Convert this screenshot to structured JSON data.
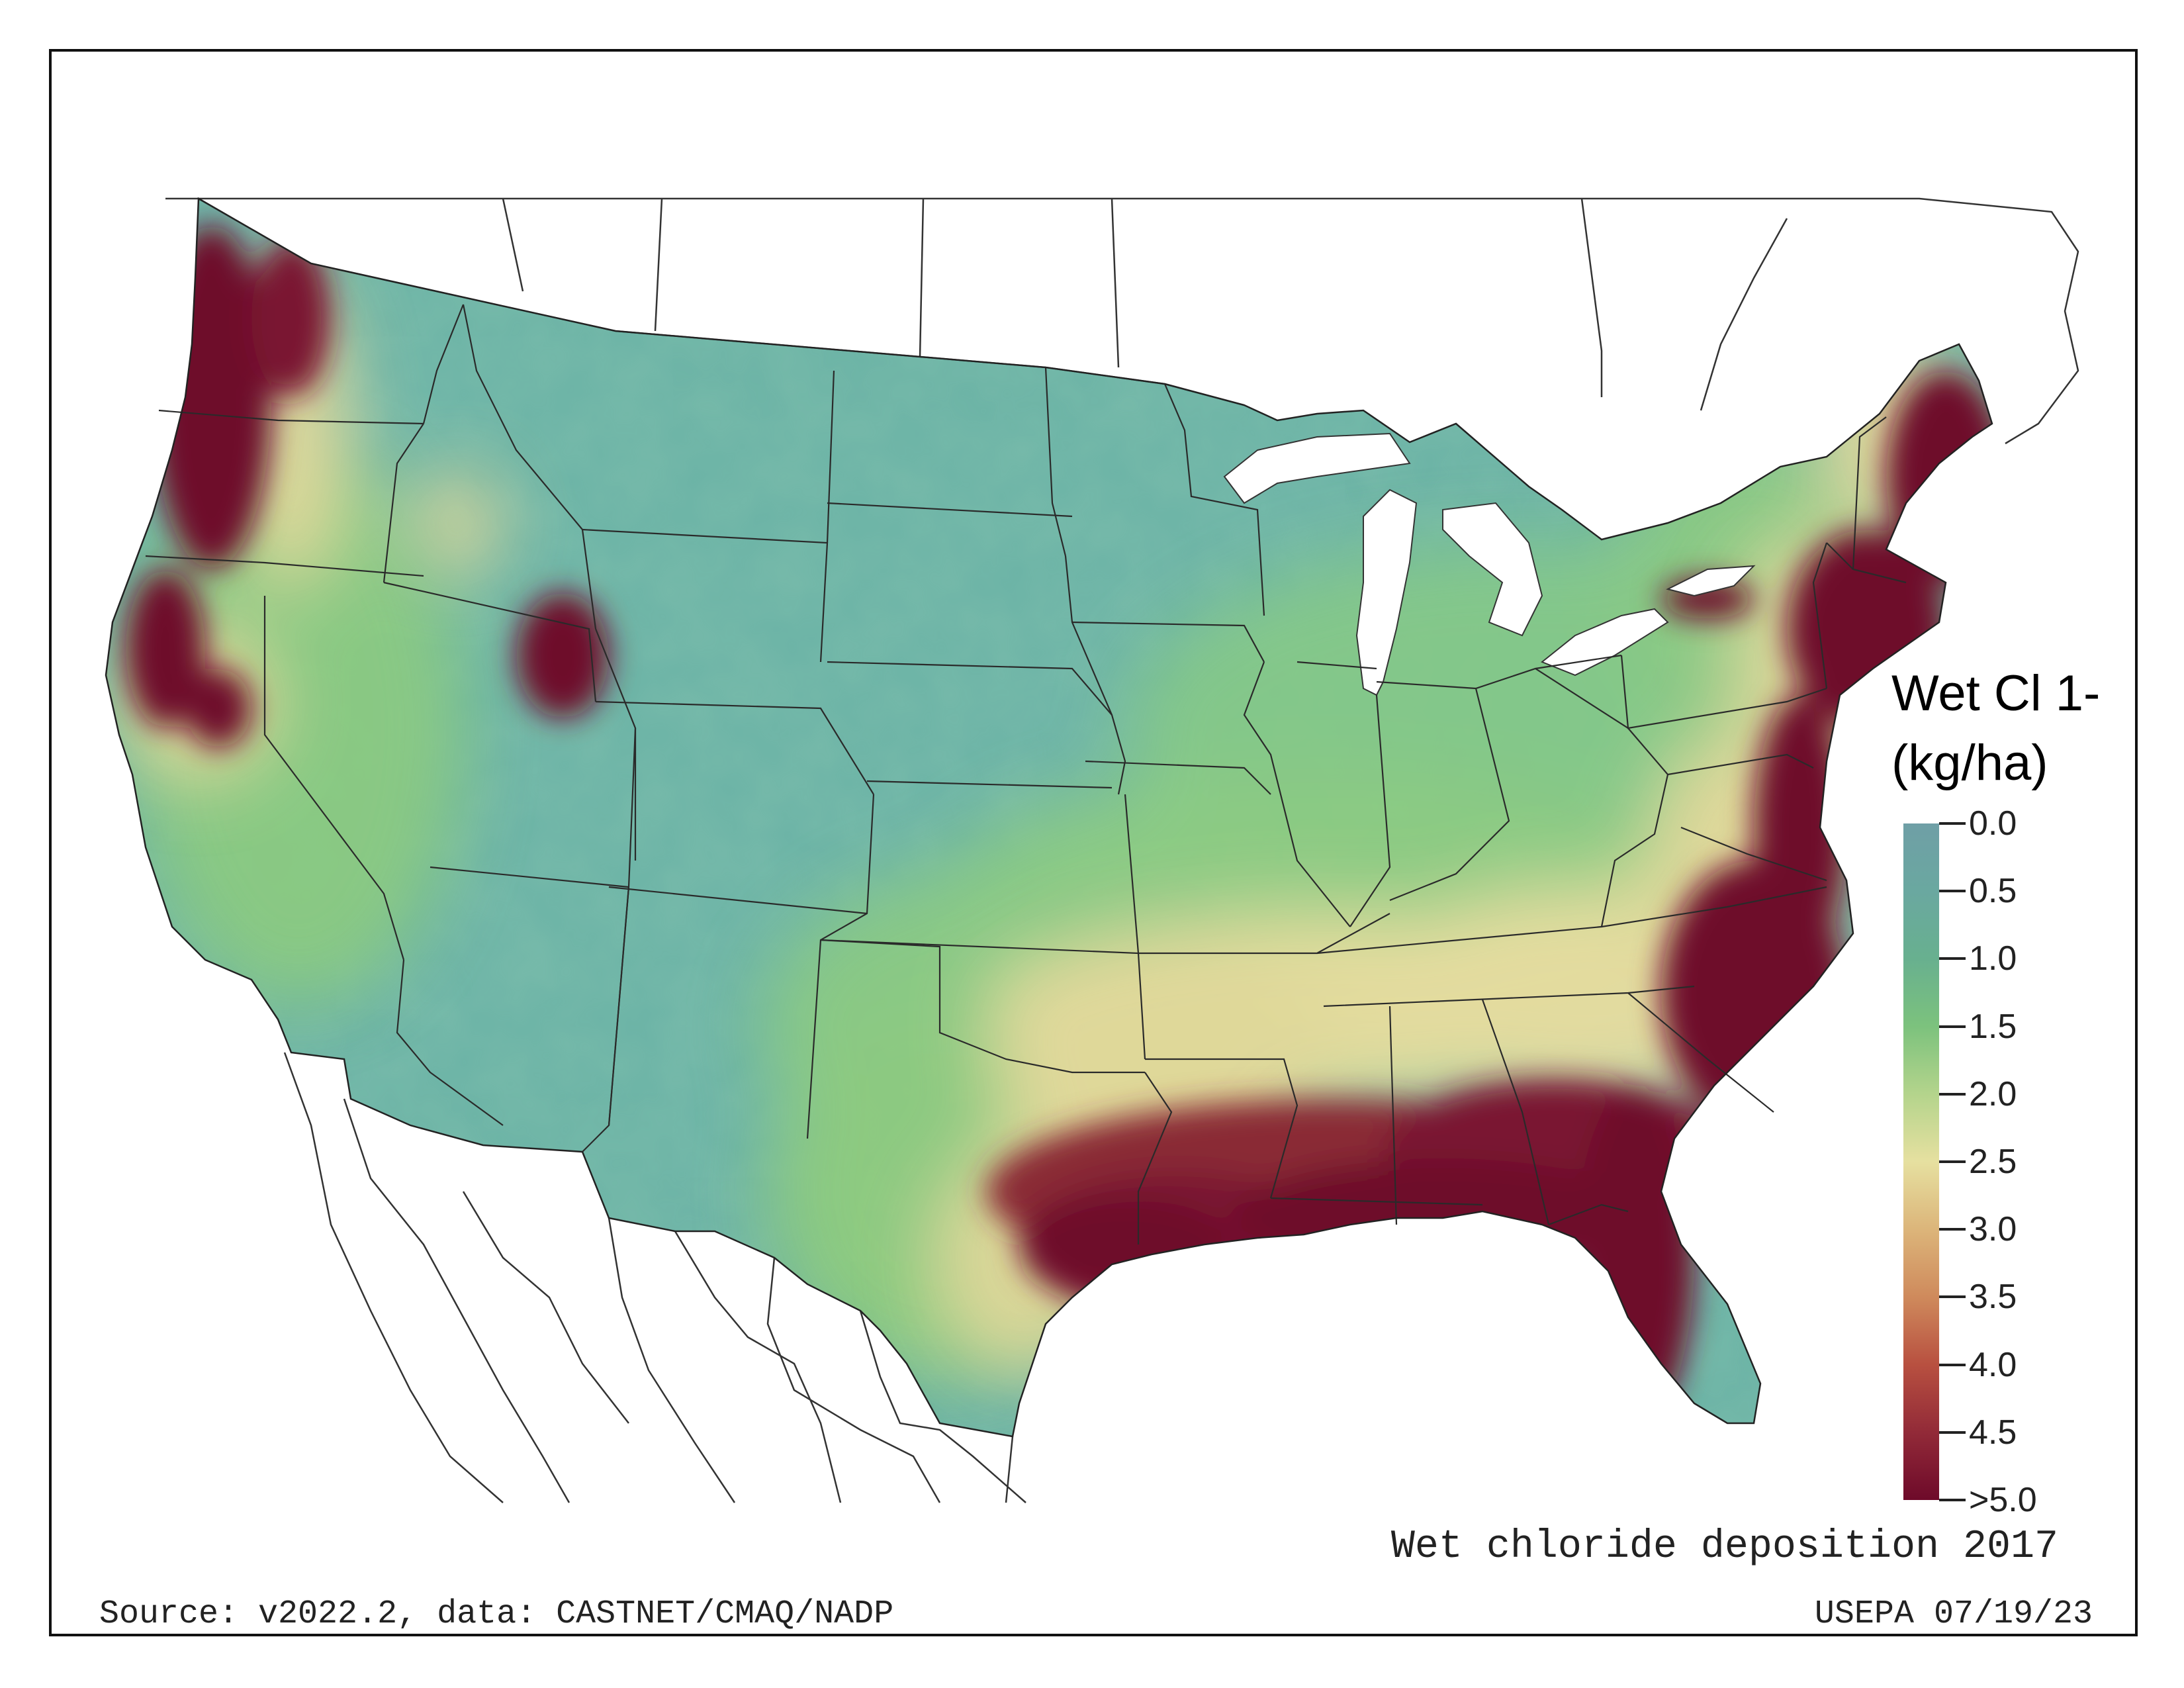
{
  "title": "Wet chloride deposition 2017",
  "source_text": "Source: v2022.2, data: CASTNET/CMAQ/NADP",
  "credit_text": "USEPA 07/19/23",
  "legend": {
    "title_line1": "Wet Cl 1-",
    "title_line2": "(kg/ha)",
    "ticks": [
      "0.0",
      "0.5",
      "1.0",
      "1.5",
      "2.0",
      "2.5",
      "3.0",
      "3.5",
      "4.0",
      "4.5",
      ">5.0"
    ],
    "colors": [
      "#6f9fa6",
      "#6aa8a0",
      "#68b08f",
      "#7cc27d",
      "#b4d48c",
      "#e6e0a0",
      "#dcb57a",
      "#cf8a5c",
      "#b85040",
      "#922a38",
      "#6e0a2a"
    ]
  },
  "colors": {
    "low": "#6bb3a6",
    "mid": "#7ec97a",
    "high_mid": "#e9dd9f",
    "high": "#6e0a2a",
    "boundary": "#222222"
  }
}
